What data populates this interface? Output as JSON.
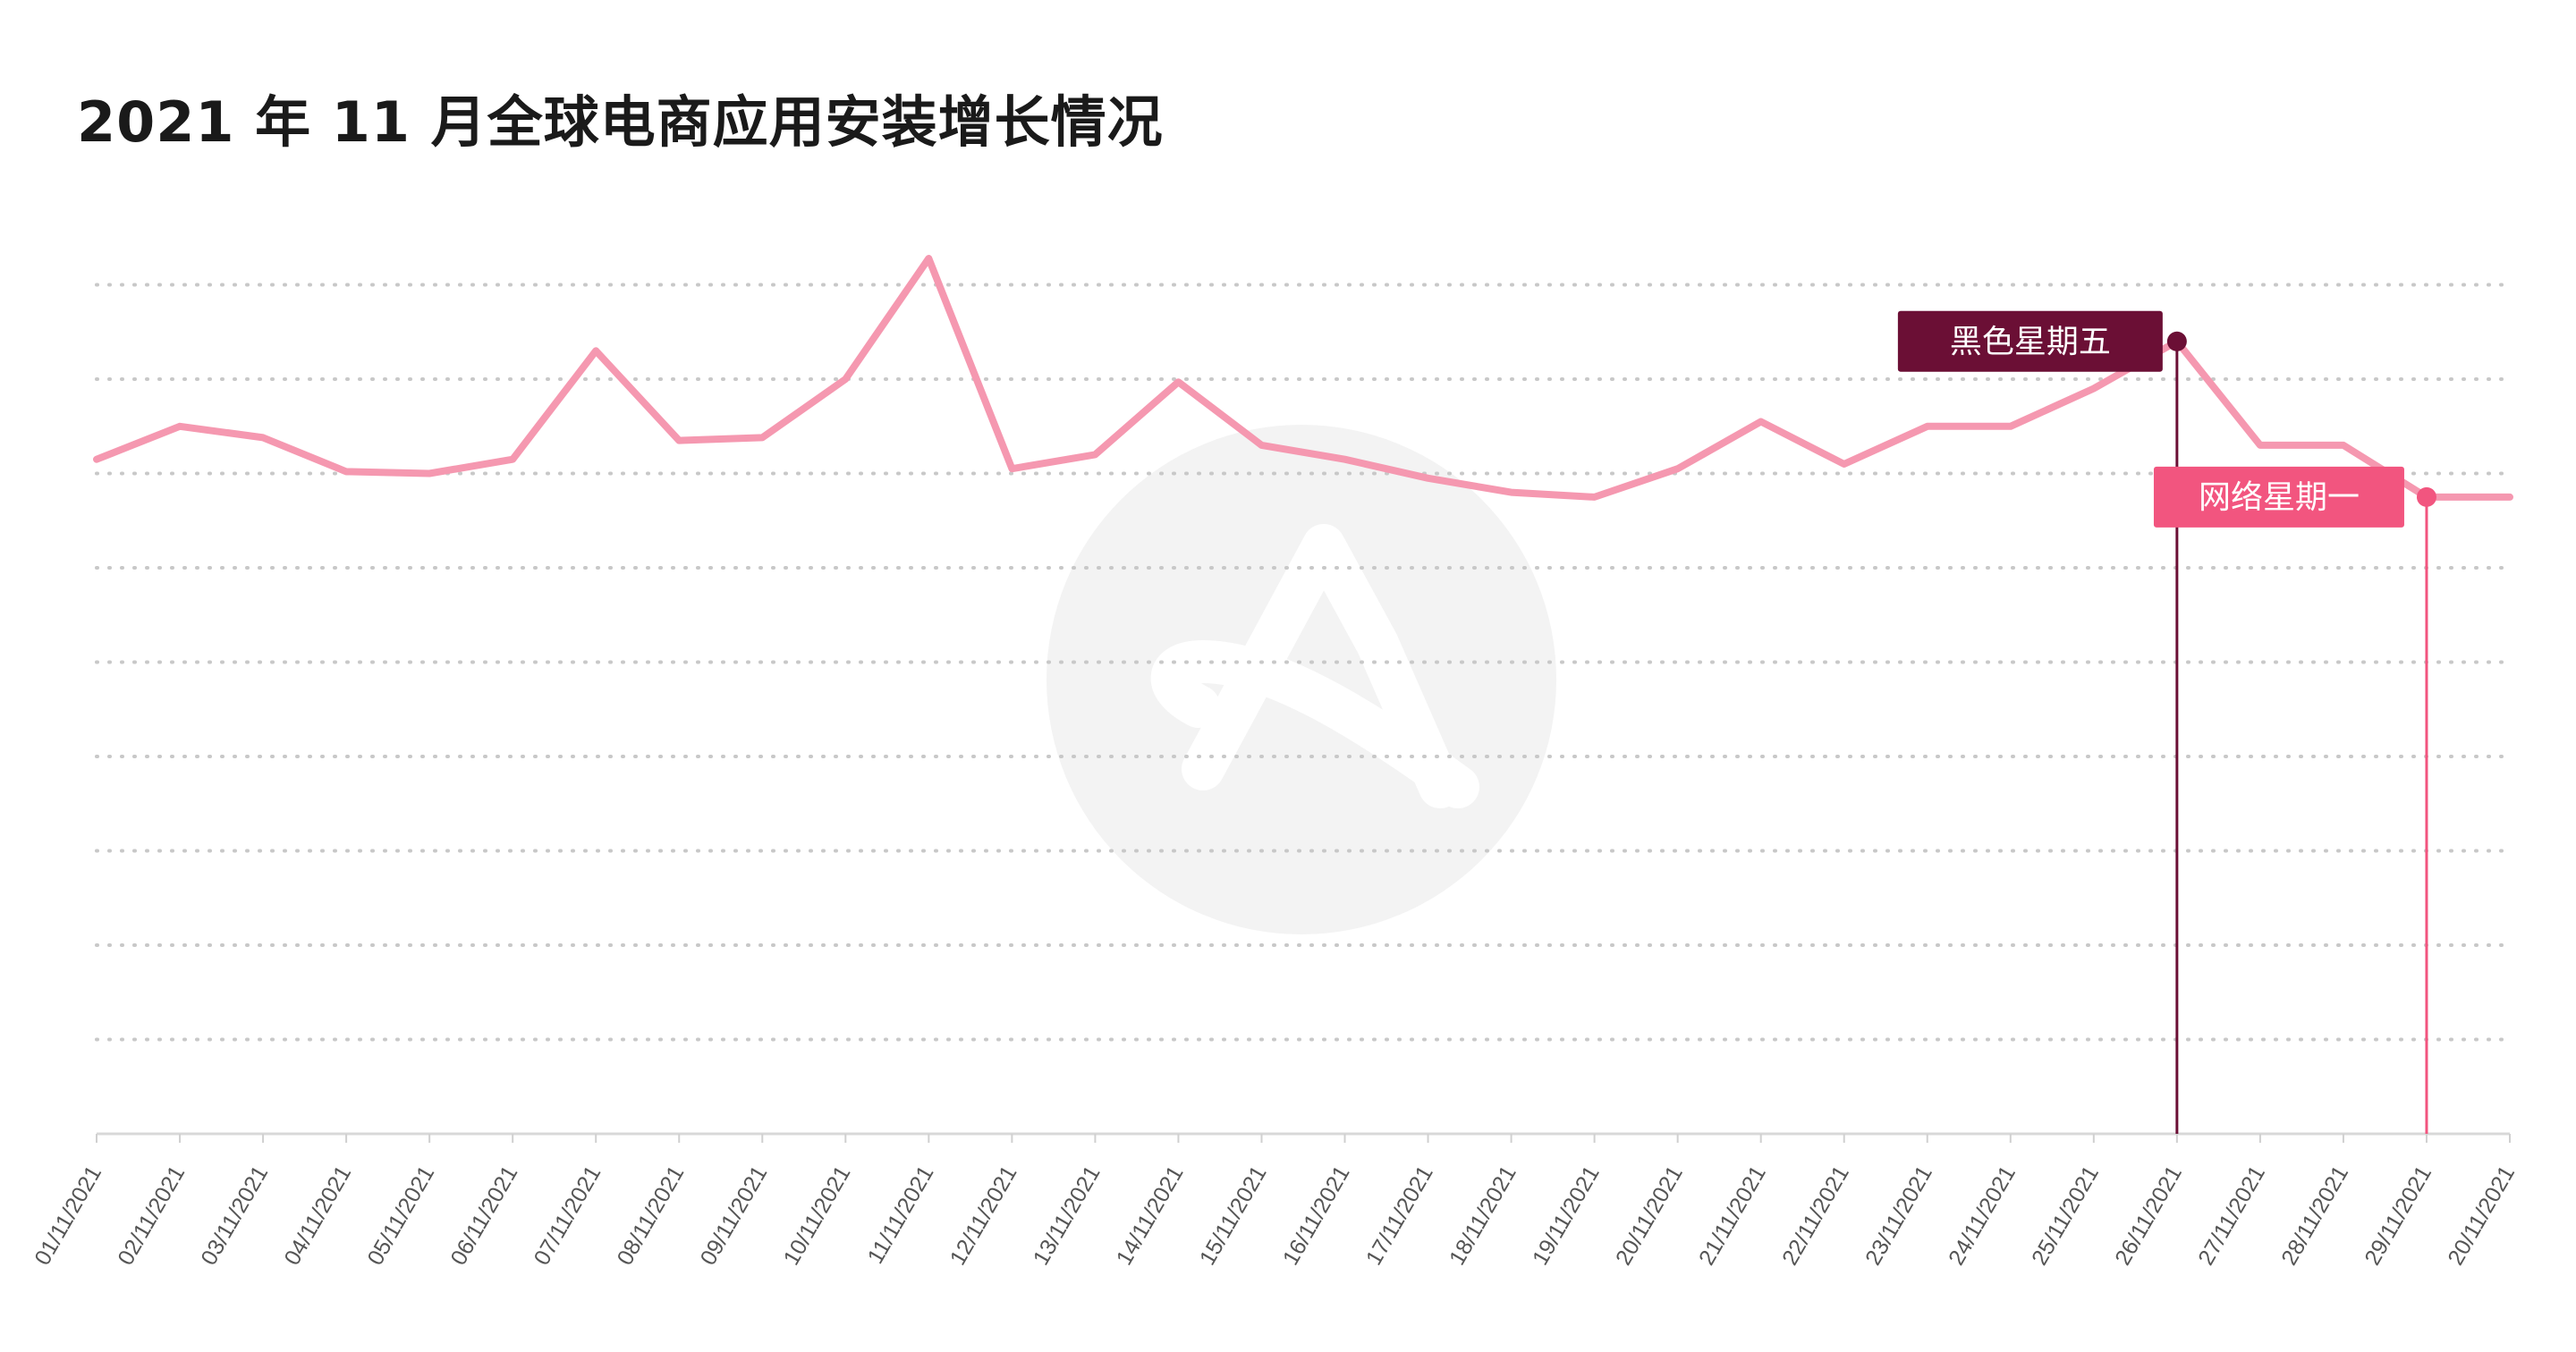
{
  "title": "2021 年 11 月全球电商应用安装增长情况",
  "colors": {
    "line": "#f598b0",
    "black_friday": "#6b0f35",
    "cyber_monday": "#f2557f",
    "grid": "#c8c8c8",
    "watermark": "#f3f3f3"
  },
  "chart_data": {
    "type": "line",
    "title": "2021 年 11 月全球电商应用安装增长情况",
    "xlabel": "",
    "ylabel": "",
    "grid": true,
    "ylim": [
      0,
      9
    ],
    "categories": [
      "01/11/2021",
      "02/11/2021",
      "03/11/2021",
      "04/11/2021",
      "05/11/2021",
      "06/11/2021",
      "07/11/2021",
      "08/11/2021",
      "09/11/2021",
      "10/11/2021",
      "11/11/2021",
      "12/11/2021",
      "13/11/2021",
      "14/11/2021",
      "15/11/2021",
      "16/11/2021",
      "17/11/2021",
      "18/11/2021",
      "19/11/2021",
      "20/11/2021",
      "21/11/2021",
      "22/11/2021",
      "23/11/2021",
      "24/11/2021",
      "25/11/2021",
      "26/11/2021",
      "27/11/2021",
      "28/11/2021",
      "29/11/2021",
      "20/11/2021"
    ],
    "series": [
      {
        "values": [
          7.15,
          7.5,
          7.38,
          7.02,
          7.0,
          7.15,
          8.3,
          7.35,
          7.38,
          8.0,
          9.28,
          7.05,
          7.2,
          7.97,
          7.3,
          7.15,
          6.95,
          6.8,
          6.75,
          7.05,
          7.55,
          7.1,
          7.5,
          7.5,
          7.9,
          8.4,
          7.3,
          7.3,
          6.75,
          6.75
        ]
      }
    ],
    "annotations": [
      {
        "label": "黑色星期五",
        "index": 25,
        "value": 8.4,
        "color_key": "black_friday"
      },
      {
        "label": "网络星期一",
        "index": 28,
        "value": 6.75,
        "color_key": "cyber_monday"
      }
    ]
  }
}
